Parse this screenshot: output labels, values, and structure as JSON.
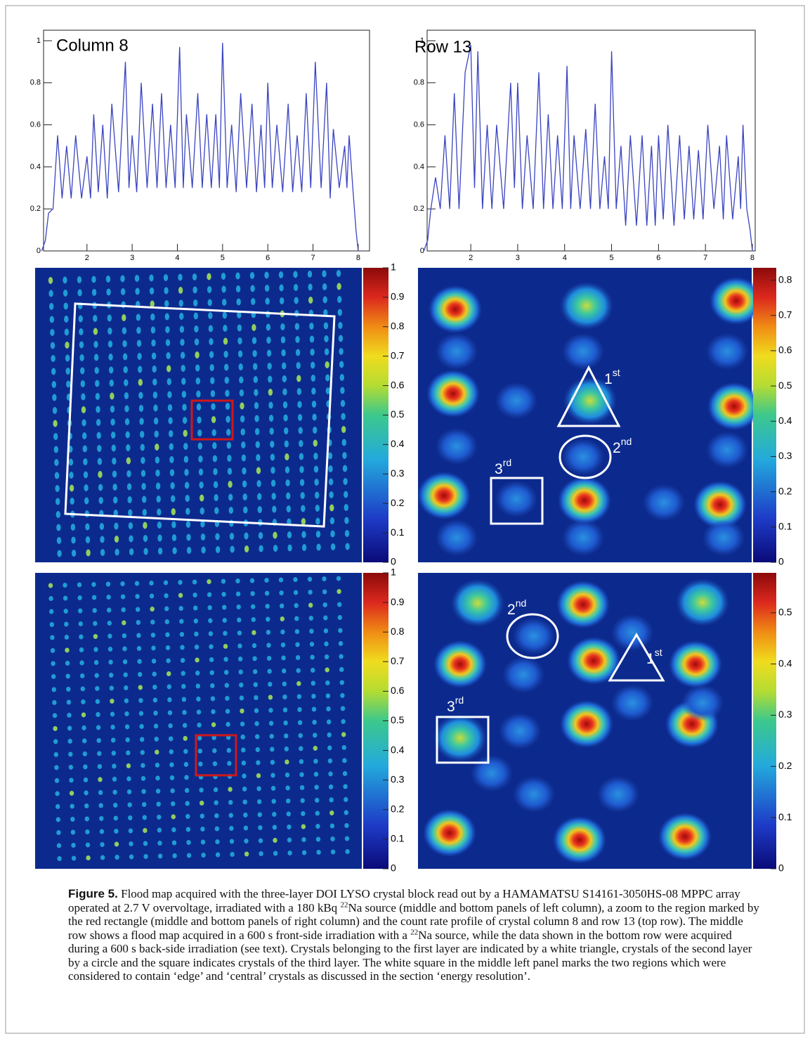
{
  "chart_data": [
    {
      "type": "line",
      "title": "Column 8",
      "color": "#3a44c0",
      "x": [
        1.0,
        1.08,
        1.15,
        1.25,
        1.35,
        1.45,
        1.55,
        1.65,
        1.75,
        1.88,
        2.0,
        2.08,
        2.15,
        2.25,
        2.35,
        2.45,
        2.55,
        2.7,
        2.85,
        2.93,
        3.0,
        3.1,
        3.2,
        3.33,
        3.45,
        3.55,
        3.65,
        3.75,
        3.85,
        3.95,
        4.05,
        4.13,
        4.2,
        4.33,
        4.45,
        4.55,
        4.65,
        4.75,
        4.85,
        4.93,
        5.0,
        5.1,
        5.2,
        5.3,
        5.4,
        5.53,
        5.65,
        5.75,
        5.85,
        5.93,
        6.0,
        6.1,
        6.2,
        6.33,
        6.45,
        6.55,
        6.65,
        6.75,
        6.85,
        6.95,
        7.05,
        7.18,
        7.3,
        7.38,
        7.45,
        7.58,
        7.7,
        7.75,
        7.8,
        7.88,
        7.95,
        8.0
      ],
      "values": [
        0,
        0.05,
        0.18,
        0.2,
        0.55,
        0.25,
        0.5,
        0.25,
        0.55,
        0.25,
        0.45,
        0.25,
        0.65,
        0.28,
        0.6,
        0.25,
        0.7,
        0.28,
        0.9,
        0.3,
        0.55,
        0.28,
        0.8,
        0.3,
        0.7,
        0.3,
        0.75,
        0.3,
        0.6,
        0.3,
        0.97,
        0.3,
        0.65,
        0.3,
        0.75,
        0.3,
        0.65,
        0.3,
        0.65,
        0.3,
        0.99,
        0.3,
        0.6,
        0.28,
        0.75,
        0.3,
        0.7,
        0.28,
        0.6,
        0.3,
        0.8,
        0.3,
        0.6,
        0.28,
        0.7,
        0.28,
        0.55,
        0.28,
        0.75,
        0.3,
        0.9,
        0.3,
        0.8,
        0.25,
        0.58,
        0.3,
        0.5,
        0.3,
        0.55,
        0.3,
        0.1,
        0
      ],
      "xlim": [
        1.04,
        8.25
      ],
      "xticks": [
        2,
        3,
        4,
        5,
        6,
        7,
        8
      ],
      "ylim": [
        0,
        1.05
      ],
      "yticks": [
        0,
        0.2,
        0.4,
        0.6,
        0.8,
        1
      ]
    },
    {
      "type": "line",
      "title": "Row 13",
      "color": "#3a44c0",
      "x": [
        1.0,
        1.08,
        1.15,
        1.25,
        1.35,
        1.45,
        1.55,
        1.65,
        1.75,
        1.88,
        2.0,
        2.08,
        2.15,
        2.25,
        2.35,
        2.45,
        2.55,
        2.7,
        2.85,
        2.93,
        3.0,
        3.1,
        3.2,
        3.33,
        3.45,
        3.55,
        3.65,
        3.75,
        3.85,
        3.95,
        4.05,
        4.13,
        4.2,
        4.33,
        4.45,
        4.55,
        4.65,
        4.75,
        4.85,
        4.93,
        5.0,
        5.1,
        5.2,
        5.3,
        5.4,
        5.53,
        5.65,
        5.75,
        5.85,
        5.93,
        6.0,
        6.1,
        6.2,
        6.33,
        6.45,
        6.55,
        6.65,
        6.75,
        6.85,
        6.95,
        7.05,
        7.18,
        7.3,
        7.38,
        7.45,
        7.58,
        7.7,
        7.75,
        7.8,
        7.88,
        7.95,
        8.0
      ],
      "values": [
        0,
        0.05,
        0.2,
        0.35,
        0.2,
        0.55,
        0.2,
        0.75,
        0.2,
        0.85,
        0.98,
        0.3,
        0.95,
        0.2,
        0.6,
        0.2,
        0.6,
        0.2,
        0.8,
        0.3,
        0.8,
        0.2,
        0.55,
        0.2,
        0.85,
        0.2,
        0.65,
        0.2,
        0.55,
        0.2,
        0.88,
        0.2,
        0.55,
        0.2,
        0.58,
        0.2,
        0.7,
        0.2,
        0.45,
        0.2,
        0.95,
        0.2,
        0.5,
        0.12,
        0.55,
        0.12,
        0.55,
        0.12,
        0.5,
        0.12,
        0.55,
        0.15,
        0.6,
        0.12,
        0.55,
        0.15,
        0.5,
        0.15,
        0.48,
        0.15,
        0.6,
        0.2,
        0.5,
        0.15,
        0.55,
        0.15,
        0.45,
        0.2,
        0.6,
        0.2,
        0.1,
        0
      ],
      "xlim": [
        1.07,
        8.06
      ],
      "xticks": [
        2,
        3,
        4,
        5,
        6,
        7,
        8
      ],
      "ylim": [
        0,
        1.05
      ],
      "yticks": [
        0,
        0.2,
        0.4,
        0.6,
        0.8,
        1
      ]
    },
    {
      "type": "heatmap",
      "zlim": [
        0,
        1
      ],
      "zticks": [
        0,
        0.1,
        0.2,
        0.3,
        0.4,
        0.5,
        0.6,
        0.7,
        0.8,
        0.9,
        1
      ]
    },
    {
      "type": "heatmap",
      "zlim": [
        0,
        0.835
      ],
      "zticks": [
        0,
        0.1,
        0.2,
        0.3,
        0.4,
        0.5,
        0.6,
        0.7,
        0.8
      ],
      "annotations": [
        {
          "text": "1",
          "sup": "st"
        },
        {
          "text": "2",
          "sup": "nd"
        },
        {
          "text": "3",
          "sup": "rd"
        }
      ]
    },
    {
      "type": "heatmap",
      "zlim": [
        0,
        1
      ],
      "zticks": [
        0,
        0.1,
        0.2,
        0.3,
        0.4,
        0.5,
        0.6,
        0.7,
        0.8,
        0.9,
        1
      ]
    },
    {
      "type": "heatmap",
      "zlim": [
        0,
        0.578
      ],
      "zticks": [
        0,
        0.1,
        0.2,
        0.3,
        0.4,
        0.5
      ],
      "annotations": [
        {
          "text": "1",
          "sup": "st"
        },
        {
          "text": "2",
          "sup": "nd"
        },
        {
          "text": "3",
          "sup": "rd"
        }
      ]
    }
  ],
  "caption": {
    "label": "Figure 5.",
    "parts": [
      "Flood map acquired with the three-layer DOI LYSO crystal block read out by a HAMAMATSU S14161-3050HS-08 MPPC array operated at 2.7 V overvoltage, irradiated with a 180 kBq ",
      "22",
      "Na source (middle and bottom panels of left column), a zoom to the region marked by the red rectangle (middle and bottom panels of right column) and the count rate profile of crystal column 8 and row 13 (top row). The middle row shows a flood map acquired in a 600 s front-side irradiation with a ",
      "22",
      "Na source, while the data shown in the bottom row were acquired during a 600 s back-side irradiation (see text). Crystals belonging to the first layer are indicated by a white triangle, crystals of the second layer by a circle and the square indicates crystals of the third layer. The white square in the middle left panel marks the two regions which were considered to contain ‘edge’ and ‘central’ crystals as discussed in the section ‘energy resolution’."
    ]
  }
}
